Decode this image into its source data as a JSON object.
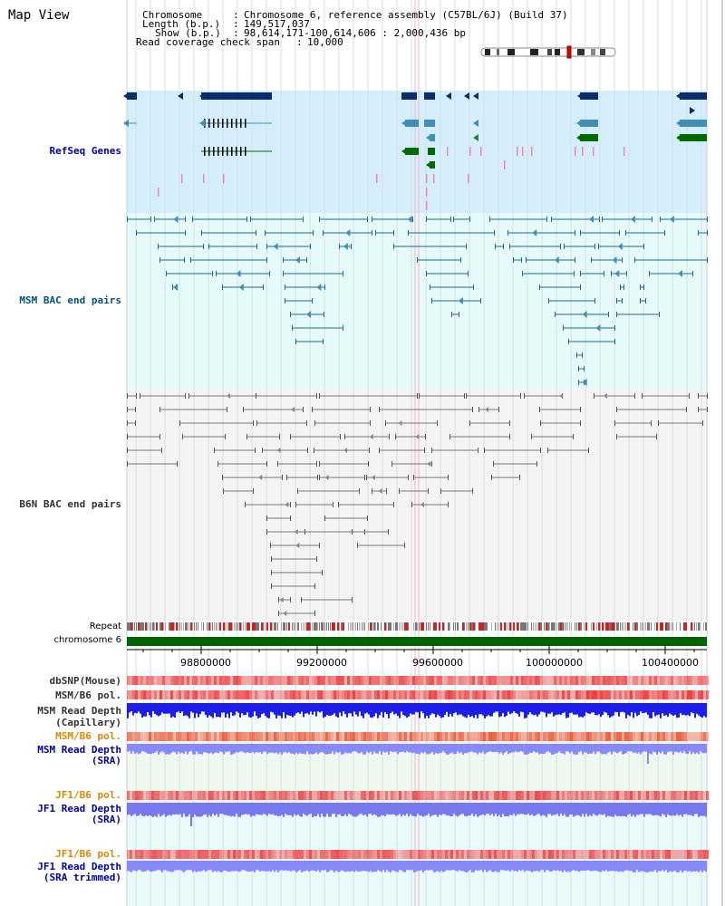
{
  "page_title": "Map View",
  "header": {
    "chromosome_label": "Chromosome",
    "chromosome_value": "Chromosome 6, reference assembly (C57BL/6J) (Build 37)",
    "length_label": "Length (b.p.)",
    "length_value": "149,517,037",
    "show_label": "Show (b.p.)",
    "show_value": "98,614,171-100,614,606 : 2,000,436 bp",
    "coverage_label": "Read coverage check span",
    "coverage_value": "10,000"
  },
  "tracks": {
    "refseq": "RefSeq Genes",
    "msm_bac": "MSM BAC end pairs",
    "b6n_bac": "B6N BAC end pairs",
    "repeat": "Repeat",
    "chromosome": "chromosome 6",
    "dbsnp": "dbSNP(Mouse)",
    "msm_b6_pol_1": "MSM/B6 pol.",
    "msm_depth_cap_1": "MSM Read Depth",
    "msm_depth_cap_2": "(Capillary)",
    "msm_b6_pol_2": "MSM/B6 pol.",
    "msm_depth_sra_1": "MSM Read Depth",
    "msm_depth_sra_2": "(SRA)",
    "jf1_b6_pol_1": "JF1/B6 pol.",
    "jf1_depth_sra_1": "JF1 Read Depth",
    "jf1_depth_sra_2": "(SRA)",
    "jf1_b6_pol_2": "JF1/B6 pol.",
    "jf1_depth_trim_1": "JF1 Read Depth",
    "jf1_depth_trim_2": "(SRA trimmed)"
  },
  "axis": {
    "ticks": [
      "98800000",
      "99200000",
      "99600000",
      "100000000",
      "100400000"
    ]
  },
  "colors": {
    "refseq_bg": "#d4eefb",
    "msm_bg": "#e6fafa",
    "b6n_bg": "#f4f4f4",
    "gene_dark": "#0a2e6b",
    "gene_mid": "#3f8fb8",
    "gene_green": "#006a00",
    "msm_line": "#1e6a8a",
    "b6n_line": "#777777",
    "label_blue": "#0000aa",
    "label_teal": "#005577",
    "label_orange": "#dd8800",
    "label_dark": "#333333",
    "chrom_green": "#006400"
  },
  "icons": {
    "ideogram": "chromosome-ideogram-icon"
  }
}
